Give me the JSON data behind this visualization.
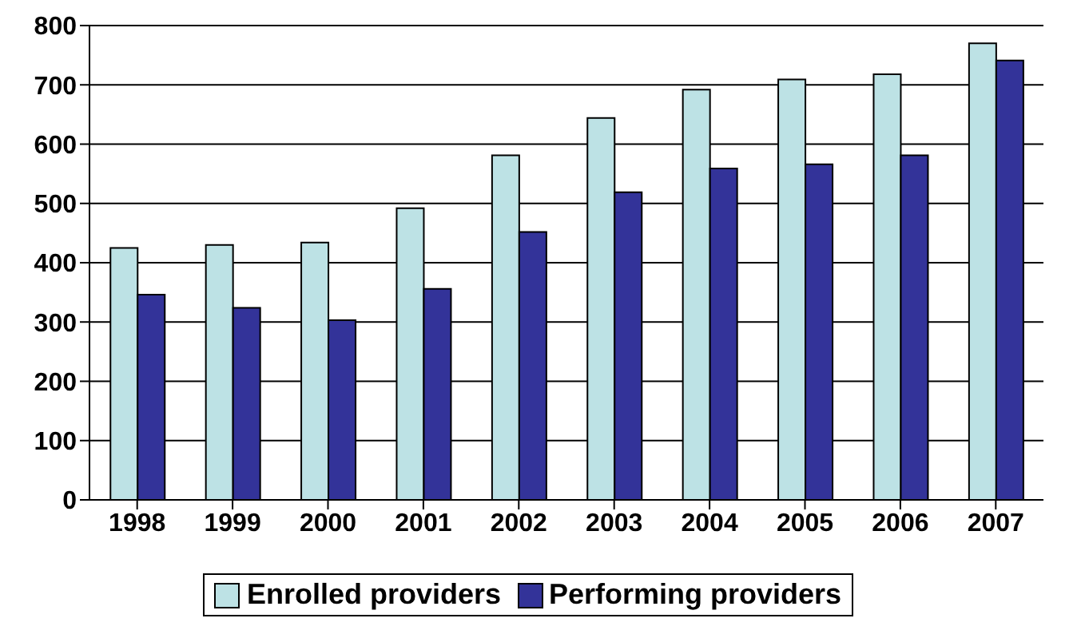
{
  "chart_data": {
    "type": "bar",
    "categories": [
      "1998",
      "1999",
      "2000",
      "2001",
      "2002",
      "2003",
      "2004",
      "2005",
      "2006",
      "2007"
    ],
    "series": [
      {
        "name": "Enrolled providers",
        "color": "#bde2e5",
        "values": [
          425,
          430,
          434,
          492,
          581,
          644,
          692,
          709,
          718,
          770
        ]
      },
      {
        "name": "Performing providers",
        "color": "#333399",
        "values": [
          346,
          324,
          303,
          356,
          452,
          519,
          559,
          566,
          581,
          741
        ]
      }
    ],
    "ylim": [
      0,
      800
    ],
    "yticks": [
      0,
      100,
      200,
      300,
      400,
      500,
      600,
      700,
      800
    ],
    "grid": "y",
    "legend": "bottom"
  }
}
